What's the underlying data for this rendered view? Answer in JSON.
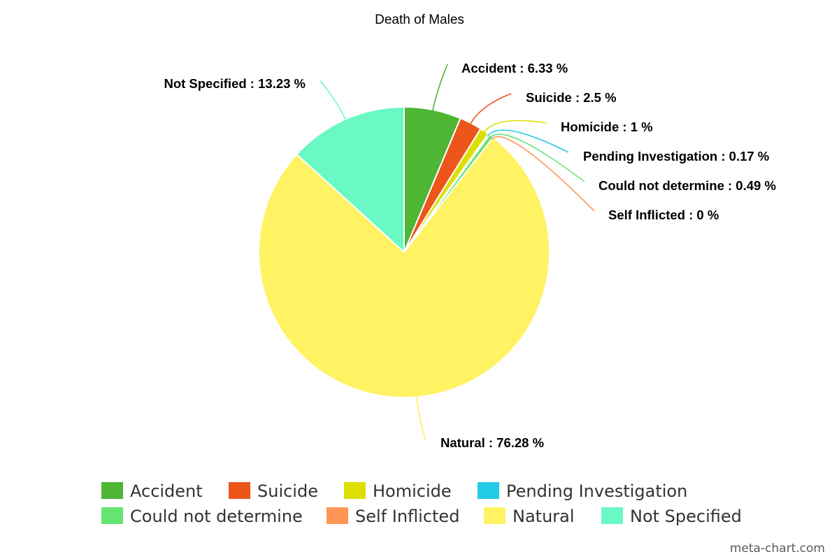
{
  "chart_data": {
    "type": "pie",
    "title": "Death of Males",
    "slices": [
      {
        "name": "Accident",
        "value": 6.33,
        "label": "Accident : 6.33 %",
        "color": "#4fb535"
      },
      {
        "name": "Suicide",
        "value": 2.5,
        "label": "Suicide : 2.5 %",
        "color": "#ec561b"
      },
      {
        "name": "Homicide",
        "value": 1,
        "label": "Homicide : 1 %",
        "color": "#dddf00"
      },
      {
        "name": "Pending Investigation",
        "value": 0.17,
        "label": "Pending Investigation : 0.17 %",
        "color": "#24cbe5"
      },
      {
        "name": "Could not determine",
        "value": 0.49,
        "label": "Could not determine : 0.49 %",
        "color": "#64e572"
      },
      {
        "name": "Self Inflicted",
        "value": 0,
        "label": "Self Inflicted : 0 %",
        "color": "#ff9655"
      },
      {
        "name": "Natural",
        "value": 76.28,
        "label": "Natural : 76.28 %",
        "color": "#fff263"
      },
      {
        "name": "Not Specified",
        "value": 13.23,
        "label": "Not Specified : 13.23 %",
        "color": "#6af9c4"
      }
    ],
    "legend_position": "bottom"
  },
  "watermark": "meta-chart.com"
}
